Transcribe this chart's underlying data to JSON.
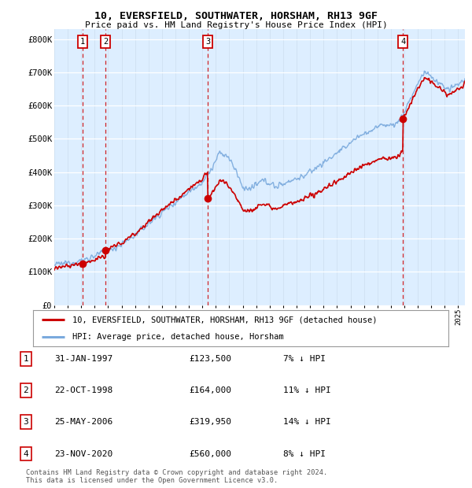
{
  "title1": "10, EVERSFIELD, SOUTHWATER, HORSHAM, RH13 9GF",
  "title2": "Price paid vs. HM Land Registry's House Price Index (HPI)",
  "ylabel_ticks": [
    "£0",
    "£100K",
    "£200K",
    "£300K",
    "£400K",
    "£500K",
    "£600K",
    "£700K",
    "£800K"
  ],
  "ytick_values": [
    0,
    100000,
    200000,
    300000,
    400000,
    500000,
    600000,
    700000,
    800000
  ],
  "ylim": [
    0,
    830000
  ],
  "xlim_start": 1995.0,
  "xlim_end": 2025.5,
  "background_color": "#ddeeff",
  "grid_color": "#ffffff",
  "purchases": [
    {
      "label": "1",
      "date_num": 1997.08,
      "price": 123500
    },
    {
      "label": "2",
      "date_num": 1998.81,
      "price": 164000
    },
    {
      "label": "3",
      "date_num": 2006.4,
      "price": 319950
    },
    {
      "label": "4",
      "date_num": 2020.9,
      "price": 560000
    }
  ],
  "legend_red_label": "10, EVERSFIELD, SOUTHWATER, HORSHAM, RH13 9GF (detached house)",
  "legend_blue_label": "HPI: Average price, detached house, Horsham",
  "table_entries": [
    {
      "num": "1",
      "date": "31-JAN-1997",
      "price": "£123,500",
      "note": "7% ↓ HPI"
    },
    {
      "num": "2",
      "date": "22-OCT-1998",
      "price": "£164,000",
      "note": "11% ↓ HPI"
    },
    {
      "num": "3",
      "date": "25-MAY-2006",
      "price": "£319,950",
      "note": "14% ↓ HPI"
    },
    {
      "num": "4",
      "date": "23-NOV-2020",
      "price": "£560,000",
      "note": "8% ↓ HPI"
    }
  ],
  "footnote": "Contains HM Land Registry data © Crown copyright and database right 2024.\nThis data is licensed under the Open Government Licence v3.0.",
  "red_line_color": "#cc0000",
  "blue_line_color": "#7aaadd",
  "dashed_line_color": "#cc0000"
}
